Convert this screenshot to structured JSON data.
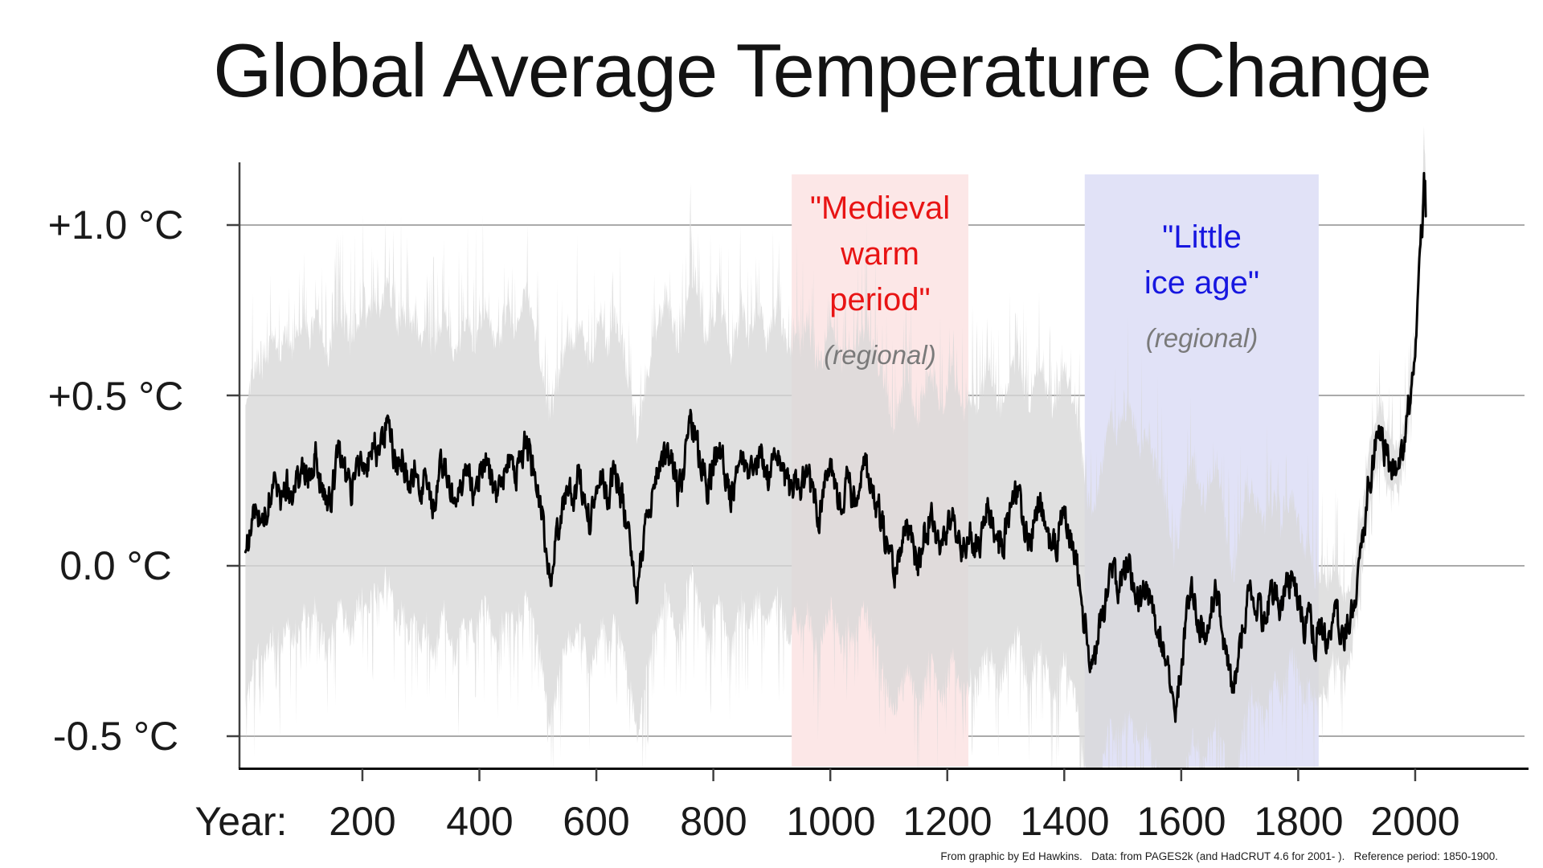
{
  "chart_data": {
    "type": "line",
    "title": "Global Average Temperature Change",
    "xlabel_prefix": "Year:",
    "x_ticks": [
      200,
      400,
      600,
      800,
      1000,
      1200,
      1400,
      1600,
      1800,
      2000
    ],
    "y_ticks": [
      {
        "label": "+1.0 °C",
        "value": 1.0
      },
      {
        "label": "+0.5 °C",
        "value": 0.5
      },
      {
        "label": "0.0 °C",
        "value": 0.0
      },
      {
        "label": "-0.5 °C",
        "value": -0.5
      }
    ],
    "xlim": [
      0,
      2018
    ],
    "ylim": [
      -0.6,
      1.18
    ],
    "grid": true,
    "background": "#ffffff",
    "axis_color": "#404040",
    "gridline_color": "#9e9e9e",
    "series": [
      {
        "name": "global-mean-temperature-reconstruction-median",
        "color": "#000000",
        "x": [
          0,
          10,
          20,
          30,
          40,
          50,
          60,
          70,
          80,
          90,
          100,
          110,
          120,
          130,
          140,
          150,
          160,
          170,
          180,
          190,
          200,
          210,
          220,
          230,
          240,
          250,
          260,
          270,
          280,
          290,
          300,
          310,
          320,
          330,
          340,
          350,
          360,
          370,
          380,
          390,
          400,
          410,
          420,
          430,
          440,
          450,
          460,
          470,
          480,
          490,
          500,
          510,
          520,
          530,
          540,
          550,
          560,
          570,
          580,
          590,
          600,
          610,
          620,
          630,
          640,
          650,
          660,
          670,
          680,
          690,
          700,
          710,
          720,
          730,
          740,
          750,
          760,
          770,
          780,
          790,
          800,
          810,
          820,
          830,
          840,
          850,
          860,
          870,
          880,
          890,
          900,
          910,
          920,
          930,
          940,
          950,
          960,
          970,
          980,
          990,
          1000,
          1010,
          1020,
          1030,
          1040,
          1050,
          1060,
          1070,
          1080,
          1090,
          1100,
          1110,
          1120,
          1130,
          1140,
          1150,
          1160,
          1170,
          1180,
          1190,
          1200,
          1210,
          1220,
          1230,
          1240,
          1250,
          1260,
          1270,
          1280,
          1290,
          1300,
          1310,
          1320,
          1330,
          1340,
          1350,
          1360,
          1370,
          1380,
          1390,
          1400,
          1410,
          1420,
          1430,
          1440,
          1450,
          1460,
          1470,
          1480,
          1490,
          1500,
          1510,
          1520,
          1530,
          1540,
          1550,
          1560,
          1570,
          1580,
          1590,
          1600,
          1610,
          1620,
          1630,
          1640,
          1650,
          1660,
          1670,
          1680,
          1690,
          1700,
          1710,
          1720,
          1730,
          1740,
          1750,
          1760,
          1770,
          1780,
          1790,
          1800,
          1810,
          1820,
          1830,
          1840,
          1850,
          1860,
          1870,
          1880,
          1890,
          1900,
          1910,
          1920,
          1930,
          1940,
          1950,
          1960,
          1970,
          1980,
          1990,
          2000,
          2005,
          2008,
          2010,
          2012,
          2014,
          2015,
          2016,
          2017,
          2018
        ],
        "y": [
          0.02,
          0.12,
          0.18,
          0.14,
          0.2,
          0.24,
          0.18,
          0.26,
          0.2,
          0.26,
          0.3,
          0.24,
          0.32,
          0.24,
          0.16,
          0.25,
          0.31,
          0.27,
          0.21,
          0.29,
          0.34,
          0.29,
          0.37,
          0.31,
          0.41,
          0.35,
          0.27,
          0.33,
          0.23,
          0.29,
          0.21,
          0.27,
          0.19,
          0.25,
          0.31,
          0.23,
          0.17,
          0.25,
          0.29,
          0.21,
          0.27,
          0.33,
          0.26,
          0.19,
          0.27,
          0.32,
          0.25,
          0.31,
          0.37,
          0.29,
          0.21,
          0.11,
          -0.03,
          0.07,
          0.15,
          0.23,
          0.19,
          0.27,
          0.21,
          0.13,
          0.21,
          0.27,
          0.19,
          0.29,
          0.23,
          0.15,
          0.06,
          -0.07,
          0.05,
          0.15,
          0.23,
          0.29,
          0.36,
          0.29,
          0.21,
          0.29,
          0.43,
          0.37,
          0.29,
          0.23,
          0.29,
          0.35,
          0.27,
          0.19,
          0.27,
          0.33,
          0.25,
          0.3,
          0.33,
          0.24,
          0.29,
          0.35,
          0.27,
          0.21,
          0.27,
          0.23,
          0.29,
          0.21,
          0.15,
          0.23,
          0.29,
          0.23,
          0.17,
          0.25,
          0.19,
          0.25,
          0.29,
          0.23,
          0.17,
          0.11,
          0.05,
          -0.02,
          0.07,
          0.13,
          0.07,
          0.01,
          0.09,
          0.15,
          0.09,
          0.03,
          0.09,
          0.15,
          0.09,
          0.03,
          0.09,
          0.05,
          0.11,
          0.17,
          0.11,
          0.05,
          0.11,
          0.17,
          0.21,
          0.13,
          0.06,
          0.13,
          0.19,
          0.11,
          0.03,
          0.09,
          0.15,
          0.09,
          0.03,
          -0.11,
          -0.23,
          -0.31,
          -0.19,
          -0.09,
          -0.01,
          -0.07,
          -0.03,
          0.03,
          -0.05,
          -0.11,
          -0.05,
          -0.11,
          -0.17,
          -0.23,
          -0.31,
          -0.45,
          -0.29,
          -0.15,
          -0.09,
          -0.15,
          -0.21,
          -0.13,
          -0.07,
          -0.17,
          -0.29,
          -0.37,
          -0.23,
          -0.13,
          -0.07,
          -0.11,
          -0.17,
          -0.11,
          -0.07,
          -0.13,
          -0.07,
          -0.03,
          -0.09,
          -0.17,
          -0.13,
          -0.23,
          -0.17,
          -0.21,
          -0.13,
          -0.17,
          -0.21,
          -0.15,
          -0.05,
          0.08,
          0.24,
          0.33,
          0.4,
          0.32,
          0.3,
          0.29,
          0.35,
          0.48,
          0.62,
          0.8,
          0.92,
          1.0,
          0.97,
          1.1,
          1.17,
          1.12,
          1.15,
          1.02
        ]
      }
    ],
    "uncertainty_band": {
      "name": "uncertainty-range",
      "color": "#d8d8d8",
      "x": [
        0,
        100,
        200,
        300,
        400,
        500,
        600,
        700,
        800,
        900,
        1000,
        1100,
        1200,
        1300,
        1400,
        1500,
        1600,
        1700,
        1800,
        1900,
        2000
      ],
      "halfwidth": [
        0.43,
        0.43,
        0.42,
        0.44,
        0.43,
        0.44,
        0.45,
        0.43,
        0.43,
        0.42,
        0.41,
        0.42,
        0.42,
        0.4,
        0.42,
        0.45,
        0.42,
        0.32,
        0.22,
        0.09,
        0.05
      ]
    },
    "bands": [
      {
        "name": "medieval-warm-period",
        "line1": "\"Medieval",
        "line2": "warm",
        "line3": "period\"",
        "sub": "(regional)",
        "text_color": "#e81414",
        "band_color": "#fce7e7",
        "year_start": 934,
        "year_end": 1236
      },
      {
        "name": "little-ice-age",
        "line1": "\"Little",
        "line2": "ice age\"",
        "sub": "(regional)",
        "text_color": "#1717e0",
        "band_color": "#e1e2f7",
        "year_start": 1435,
        "year_end": 1835
      }
    ],
    "footer": "From graphic by Ed Hawkins.   Data: from PAGES2k (and HadCRUT 4.6 for 2001- ).   Reference period: 1850-1900."
  }
}
